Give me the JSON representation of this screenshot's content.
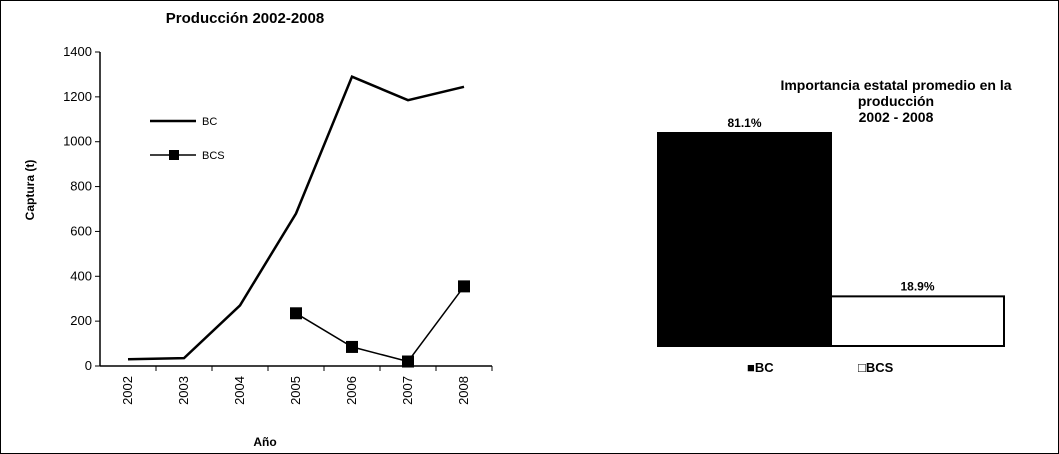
{
  "chart_data": [
    {
      "type": "line",
      "title": "Producción 2002-2008",
      "xlabel": "Año",
      "ylabel": "Captura (t)",
      "x": [
        "2002",
        "2003",
        "2004",
        "2005",
        "2006",
        "2007",
        "2008"
      ],
      "ylim": [
        0,
        1400
      ],
      "yticks": [
        "0",
        "200",
        "400",
        "600",
        "800",
        "1000",
        "1200",
        "1400"
      ],
      "grid": false,
      "legend_position": "top-left",
      "series": [
        {
          "name": "BC",
          "marker": "none",
          "color": "#000000",
          "values": [
            30,
            35,
            270,
            680,
            1290,
            1185,
            1245
          ]
        },
        {
          "name": "BCS",
          "marker": "square",
          "color": "#000000",
          "values": [
            null,
            null,
            null,
            235,
            85,
            20,
            355
          ]
        }
      ]
    },
    {
      "type": "bar",
      "title_lines": [
        "Importancia estatal promedio en la",
        "producción",
        "2002 - 2008"
      ],
      "categories": [
        "BC",
        "BCS"
      ],
      "values": [
        81.1,
        18.9
      ],
      "data_labels": [
        "81.1%",
        "18.9%"
      ],
      "ylim": [
        0,
        85
      ],
      "legend": [
        "■BC",
        "□BCS"
      ],
      "colors": [
        "#000000",
        "#ffffff"
      ]
    }
  ]
}
